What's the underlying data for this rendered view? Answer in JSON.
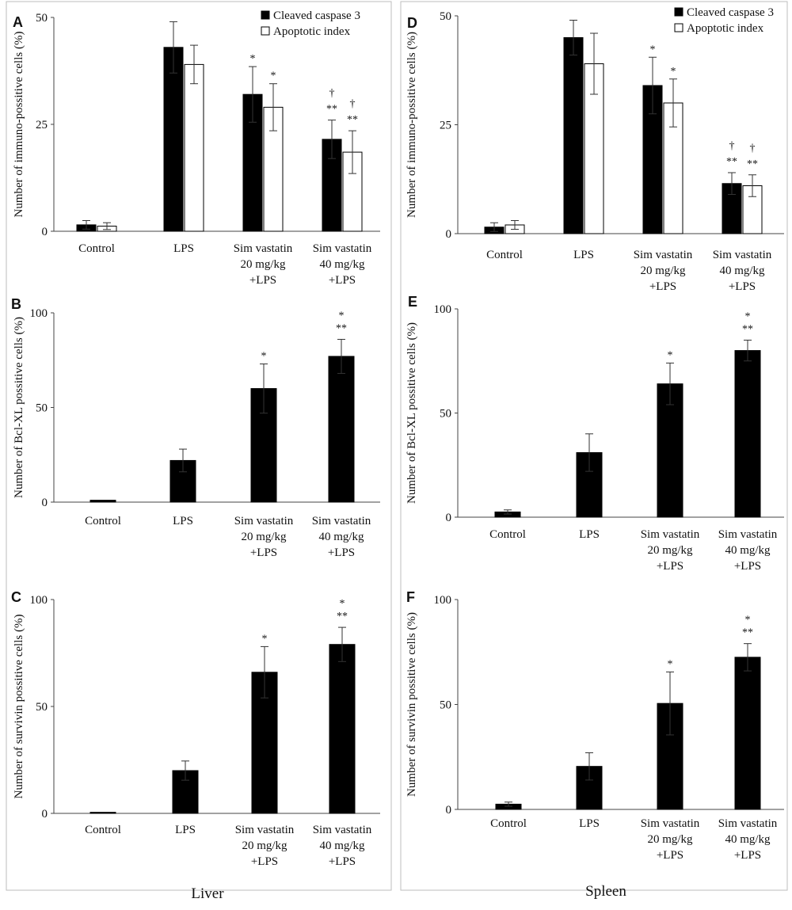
{
  "figure": {
    "footer_left": "Liver",
    "footer_right": "Spleen"
  },
  "chart_data": [
    {
      "id": "A",
      "letter": "A",
      "type": "bar",
      "ylabel": "Number of immuno-possitive cells (%)",
      "ylim": [
        0,
        50
      ],
      "yticks": [
        0,
        25,
        50
      ],
      "categories": [
        [
          "Control"
        ],
        [
          "LPS"
        ],
        [
          "Sim vastatin",
          "20 mg/kg",
          "+LPS"
        ],
        [
          "Sim vastatin",
          "40 mg/kg",
          "+LPS"
        ]
      ],
      "legend": [
        "Cleaved caspase 3",
        "Apoptotic index"
      ],
      "series": [
        {
          "name": "Cleaved caspase 3",
          "color": "#000000",
          "values": [
            1.5,
            43,
            32,
            21.5
          ],
          "errors": [
            1.0,
            6.0,
            6.5,
            4.5
          ],
          "sig": [
            [],
            [],
            [
              "*"
            ],
            [
              "†",
              "**"
            ]
          ]
        },
        {
          "name": "Apoptotic index",
          "color": "#ffffff",
          "values": [
            1.2,
            39,
            29,
            18.5
          ],
          "errors": [
            0.8,
            4.5,
            5.5,
            5.0
          ],
          "sig": [
            [],
            [],
            [
              "*"
            ],
            [
              "†",
              "**"
            ]
          ]
        }
      ]
    },
    {
      "id": "B",
      "letter": "B",
      "type": "bar",
      "ylabel": "Number of Bcl-XL  possitive cells (%)",
      "ylim": [
        0,
        100
      ],
      "yticks": [
        0,
        50,
        100
      ],
      "categories": [
        [
          "Control"
        ],
        [
          "LPS"
        ],
        [
          "Sim vastatin",
          "20 mg/kg",
          "+LPS"
        ],
        [
          "Sim vastatin",
          "40 mg/kg",
          "+LPS"
        ]
      ],
      "legend": [],
      "series": [
        {
          "name": "Bcl-XL",
          "color": "#000000",
          "values": [
            1,
            22,
            60,
            77
          ],
          "errors": [
            0,
            6,
            13,
            9
          ],
          "sig": [
            [],
            [],
            [
              "*"
            ],
            [
              "*",
              "**"
            ]
          ]
        }
      ]
    },
    {
      "id": "C",
      "letter": "C",
      "type": "bar",
      "ylabel": "Number of survivin possitive cells (%)",
      "ylim": [
        0,
        100
      ],
      "yticks": [
        0,
        50,
        100
      ],
      "categories": [
        [
          "Control"
        ],
        [
          "LPS"
        ],
        [
          "Sim vastatin",
          "20 mg/kg",
          "+LPS"
        ],
        [
          "Sim vastatin",
          "40 mg/kg",
          "+LPS"
        ]
      ],
      "legend": [],
      "series": [
        {
          "name": "Survivin",
          "color": "#000000",
          "values": [
            0.5,
            20,
            66,
            79
          ],
          "errors": [
            0,
            4.5,
            12,
            8
          ],
          "sig": [
            [],
            [],
            [
              "*"
            ],
            [
              "*",
              "**"
            ]
          ]
        }
      ]
    },
    {
      "id": "D",
      "letter": "D",
      "type": "bar",
      "ylabel": "Number of immuno-possitive cells (%)",
      "ylim": [
        0,
        50
      ],
      "yticks": [
        0,
        25,
        50
      ],
      "categories": [
        [
          "Control"
        ],
        [
          "LPS"
        ],
        [
          "Sim vastatin",
          "20 mg/kg",
          "+LPS"
        ],
        [
          "Sim vastatin",
          "40 mg/kg",
          "+LPS"
        ]
      ],
      "legend": [
        "Cleaved caspase 3",
        "Apoptotic index"
      ],
      "series": [
        {
          "name": "Cleaved caspase 3",
          "color": "#000000",
          "values": [
            1.5,
            45,
            34,
            11.5
          ],
          "errors": [
            1.0,
            4.0,
            6.5,
            2.5
          ],
          "sig": [
            [],
            [],
            [
              "*"
            ],
            [
              "†",
              "**"
            ]
          ]
        },
        {
          "name": "Apoptotic index",
          "color": "#ffffff",
          "values": [
            2,
            39,
            30,
            11
          ],
          "errors": [
            1.0,
            7.0,
            5.5,
            2.5
          ],
          "sig": [
            [],
            [],
            [
              "*"
            ],
            [
              "†",
              "**"
            ]
          ]
        }
      ]
    },
    {
      "id": "E",
      "letter": "E",
      "type": "bar",
      "ylabel": "Number of Bcl-XL  possitive cells (%)",
      "ylim": [
        0,
        100
      ],
      "yticks": [
        0,
        50,
        100
      ],
      "categories": [
        [
          "Control"
        ],
        [
          "LPS"
        ],
        [
          "Sim vastatin",
          "20 mg/kg",
          "+LPS"
        ],
        [
          "Sim vastatin",
          "40 mg/kg",
          "+LPS"
        ]
      ],
      "legend": [],
      "series": [
        {
          "name": "Bcl-XL",
          "color": "#000000",
          "values": [
            2.5,
            31,
            64,
            80
          ],
          "errors": [
            1,
            9,
            10,
            5
          ],
          "sig": [
            [],
            [],
            [
              "*"
            ],
            [
              "*",
              "**"
            ]
          ]
        }
      ]
    },
    {
      "id": "F",
      "letter": "F",
      "type": "bar",
      "ylabel": "Number of survivin possitive cells (%)",
      "ylim": [
        0,
        100
      ],
      "yticks": [
        0,
        50,
        100
      ],
      "categories": [
        [
          "Control"
        ],
        [
          "LPS"
        ],
        [
          "Sim vastatin",
          "20 mg/kg",
          "+LPS"
        ],
        [
          "Sim vastatin",
          "40 mg/kg",
          "+LPS"
        ]
      ],
      "legend": [],
      "series": [
        {
          "name": "Survivin",
          "color": "#000000",
          "values": [
            2.5,
            20.5,
            50.5,
            72.5
          ],
          "errors": [
            1,
            6.5,
            15,
            6.5
          ],
          "sig": [
            [],
            [],
            [
              "*"
            ],
            [
              "*",
              "**"
            ]
          ]
        }
      ]
    }
  ]
}
